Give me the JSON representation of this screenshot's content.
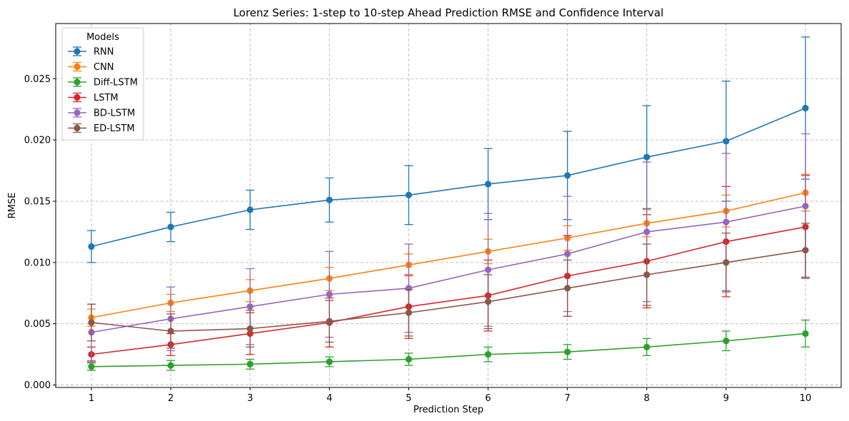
{
  "chart_data": {
    "type": "line",
    "title": "Lorenz Series: 1-step to 10-step Ahead Prediction RMSE and Confidence Interval",
    "xlabel": "Prediction Step",
    "ylabel": "RMSE",
    "x": [
      1,
      2,
      3,
      4,
      5,
      6,
      7,
      8,
      9,
      10
    ],
    "xlim": [
      0.55,
      10.45
    ],
    "ylim": [
      -0.0002,
      0.0295
    ],
    "yticks": [
      0.0,
      0.005,
      0.01,
      0.015,
      0.02,
      0.025
    ],
    "ytick_labels": [
      "0.000",
      "0.005",
      "0.010",
      "0.015",
      "0.020",
      "0.025"
    ],
    "xtick_labels": [
      "1",
      "2",
      "3",
      "4",
      "5",
      "6",
      "7",
      "8",
      "9",
      "10"
    ],
    "grid": true,
    "legend_title": "Models",
    "legend_position": "top-left",
    "series": [
      {
        "name": "RNN",
        "color": "#1f77b4",
        "values": [
          0.0113,
          0.0129,
          0.0143,
          0.0151,
          0.0155,
          0.0164,
          0.0171,
          0.0186,
          0.0199,
          0.0226
        ],
        "lower": [
          0.01,
          0.0117,
          0.0127,
          0.0133,
          0.0131,
          0.0135,
          0.0135,
          0.0144,
          0.015,
          0.0168
        ],
        "upper": [
          0.0126,
          0.0141,
          0.0159,
          0.0169,
          0.0179,
          0.0193,
          0.0207,
          0.0228,
          0.0248,
          0.0284
        ]
      },
      {
        "name": "CNN",
        "color": "#ff7f0e",
        "values": [
          0.0055,
          0.0067,
          0.0077,
          0.0087,
          0.0098,
          0.0109,
          0.012,
          0.0132,
          0.0142,
          0.0157
        ],
        "lower": [
          0.0048,
          0.006,
          0.0068,
          0.0077,
          0.0089,
          0.0099,
          0.011,
          0.0121,
          0.0129,
          0.0142
        ],
        "upper": [
          0.0062,
          0.0074,
          0.0086,
          0.0096,
          0.0107,
          0.0119,
          0.013,
          0.0143,
          0.0155,
          0.0172
        ]
      },
      {
        "name": "Diff-LSTM",
        "color": "#2ca02c",
        "values": [
          0.0015,
          0.0016,
          0.0017,
          0.0019,
          0.0021,
          0.0025,
          0.0027,
          0.0031,
          0.0036,
          0.0042
        ],
        "lower": [
          0.0012,
          0.0012,
          0.0013,
          0.0015,
          0.0016,
          0.0019,
          0.0021,
          0.0024,
          0.0028,
          0.0031
        ],
        "upper": [
          0.0018,
          0.002,
          0.0021,
          0.0023,
          0.0026,
          0.0031,
          0.0033,
          0.0038,
          0.0044,
          0.0053
        ]
      },
      {
        "name": "LSTM",
        "color": "#d62728",
        "values": [
          0.0025,
          0.0033,
          0.0042,
          0.0051,
          0.0064,
          0.0073,
          0.0089,
          0.0101,
          0.0117,
          0.0129
        ],
        "lower": [
          0.0019,
          0.0024,
          0.0025,
          0.0031,
          0.0038,
          0.0044,
          0.0056,
          0.0063,
          0.0072,
          0.0087
        ],
        "upper": [
          0.0031,
          0.0042,
          0.0059,
          0.0071,
          0.009,
          0.0102,
          0.0122,
          0.0139,
          0.0162,
          0.0171
        ]
      },
      {
        "name": "BD-LSTM",
        "color": "#9467bd",
        "values": [
          0.0043,
          0.0054,
          0.0064,
          0.0074,
          0.0079,
          0.0094,
          0.0107,
          0.0125,
          0.0133,
          0.0146
        ],
        "lower": [
          0.002,
          0.0028,
          0.0033,
          0.0039,
          0.0043,
          0.0048,
          0.006,
          0.0068,
          0.0077,
          0.0087
        ],
        "upper": [
          0.0066,
          0.008,
          0.0095,
          0.0109,
          0.0115,
          0.014,
          0.0154,
          0.0182,
          0.0189,
          0.0205
        ]
      },
      {
        "name": "ED-LSTM",
        "color": "#8c564b",
        "values": [
          0.0051,
          0.0044,
          0.0046,
          0.0052,
          0.0059,
          0.0068,
          0.0079,
          0.009,
          0.01,
          0.011
        ],
        "lower": [
          0.0036,
          0.003,
          0.0031,
          0.0035,
          0.004,
          0.0046,
          0.0056,
          0.0065,
          0.0076,
          0.0088
        ],
        "upper": [
          0.0066,
          0.0058,
          0.0061,
          0.0069,
          0.0078,
          0.009,
          0.0102,
          0.0115,
          0.0124,
          0.0132
        ]
      }
    ]
  }
}
